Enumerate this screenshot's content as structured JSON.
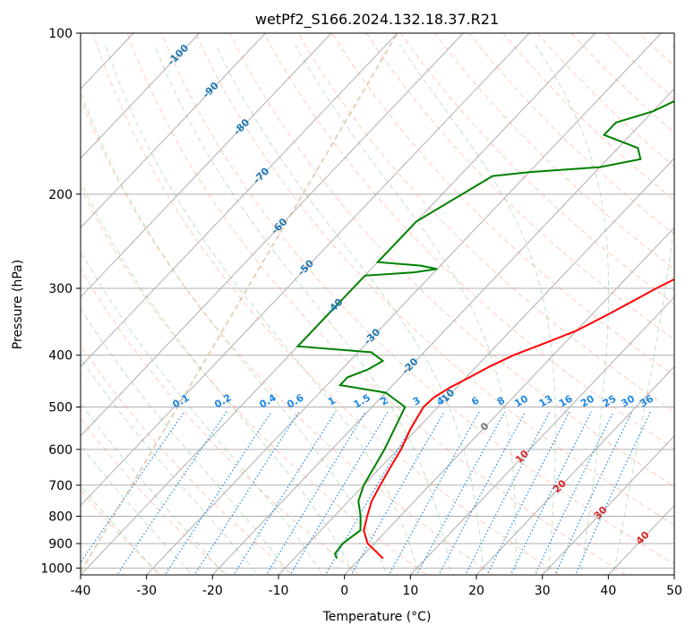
{
  "chart_data": {
    "type": "skew-t",
    "title": "wetPf2_S166.2024.132.18.37.R21",
    "xlabel": "Temperature (°C)",
    "ylabel": "Pressure (hPa)",
    "xlim": [
      -40,
      50
    ],
    "ylim": [
      1030,
      100
    ],
    "y_scale": "log",
    "grid": true,
    "xticks": [
      -40,
      -30,
      -20,
      -10,
      0,
      10,
      20,
      30,
      40,
      50
    ],
    "yticks": [
      100,
      200,
      300,
      400,
      500,
      600,
      700,
      800,
      900,
      1000
    ],
    "isotherm_labels": {
      "blue": [
        -100,
        -90,
        -80,
        -70,
        -60,
        -50,
        -40,
        -30,
        -20,
        -10
      ],
      "grey": [
        0
      ],
      "red": [
        10,
        20,
        30,
        40
      ]
    },
    "mixing_ratio_labels": [
      "0.1",
      "0.2",
      "0.4",
      "0.6",
      "1",
      "1.5",
      "2",
      "3",
      "4",
      "6",
      "8",
      "10",
      "13",
      "16",
      "20",
      "25",
      "30",
      "36"
    ],
    "mixing_ratio_values": [
      0.1,
      0.2,
      0.4,
      0.6,
      1,
      1.5,
      2,
      3,
      4,
      6,
      8,
      10,
      13,
      16,
      20,
      25,
      30,
      36
    ],
    "series": [
      {
        "color": "#ff0000",
        "points": [
          {
            "p": 960,
            "t": 3.5
          },
          {
            "p": 900,
            "t": -1
          },
          {
            "p": 850,
            "t": -3.5
          },
          {
            "p": 800,
            "t": -5
          },
          {
            "p": 750,
            "t": -6.5
          },
          {
            "p": 700,
            "t": -7.5
          },
          {
            "p": 650,
            "t": -8.5
          },
          {
            "p": 600,
            "t": -9.5
          },
          {
            "p": 550,
            "t": -11
          },
          {
            "p": 500,
            "t": -12.2
          },
          {
            "p": 480,
            "t": -12
          },
          {
            "p": 460,
            "t": -11
          },
          {
            "p": 440,
            "t": -9.5
          },
          {
            "p": 420,
            "t": -8
          },
          {
            "p": 400,
            "t": -6
          },
          {
            "p": 380,
            "t": -3
          },
          {
            "p": 360,
            "t": 0
          },
          {
            "p": 340,
            "t": 2
          },
          {
            "p": 320,
            "t": 4
          },
          {
            "p": 300,
            "t": 6
          },
          {
            "p": 280,
            "t": 8.5
          },
          {
            "p": 260,
            "t": 11
          },
          {
            "p": 240,
            "t": 13
          },
          {
            "p": 220,
            "t": 15
          },
          {
            "p": 200,
            "t": 17
          },
          {
            "p": 180,
            "t": 19.5
          },
          {
            "p": 160,
            "t": 22
          },
          {
            "p": 140,
            "t": 24.5
          },
          {
            "p": 125,
            "t": 27
          },
          {
            "p": 115,
            "t": 29
          },
          {
            "p": 108,
            "t": 30
          },
          {
            "p": 100,
            "t": 31.5
          }
        ]
      },
      {
        "color": "#008000",
        "points": [
          {
            "p": 960,
            "t": -3.5
          },
          {
            "p": 940,
            "t": -4.5
          },
          {
            "p": 900,
            "t": -4.8
          },
          {
            "p": 850,
            "t": -4
          },
          {
            "p": 800,
            "t": -6
          },
          {
            "p": 750,
            "t": -8.5
          },
          {
            "p": 700,
            "t": -10
          },
          {
            "p": 600,
            "t": -12
          },
          {
            "p": 500,
            "t": -15
          },
          {
            "p": 470,
            "t": -20
          },
          {
            "p": 455,
            "t": -28
          },
          {
            "p": 440,
            "t": -28
          },
          {
            "p": 425,
            "t": -26
          },
          {
            "p": 410,
            "t": -25
          },
          {
            "p": 395,
            "t": -28
          },
          {
            "p": 385,
            "t": -40
          },
          {
            "p": 284,
            "t": -40
          },
          {
            "p": 280,
            "t": -33
          },
          {
            "p": 276,
            "t": -30
          },
          {
            "p": 272,
            "t": -33
          },
          {
            "p": 268,
            "t": -40
          },
          {
            "p": 225,
            "t": -40
          },
          {
            "p": 185,
            "t": -35
          },
          {
            "p": 182,
            "t": -30
          },
          {
            "p": 178,
            "t": -20
          },
          {
            "p": 172,
            "t": -15
          },
          {
            "p": 164,
            "t": -17
          },
          {
            "p": 155,
            "t": -24
          },
          {
            "p": 147,
            "t": -24
          },
          {
            "p": 140,
            "t": -20
          },
          {
            "p": 130,
            "t": -17
          },
          {
            "p": 120,
            "t": -14
          },
          {
            "p": 112,
            "t": -9
          },
          {
            "p": 104,
            "t": -3
          },
          {
            "p": 100,
            "t": 0
          }
        ]
      }
    ]
  }
}
